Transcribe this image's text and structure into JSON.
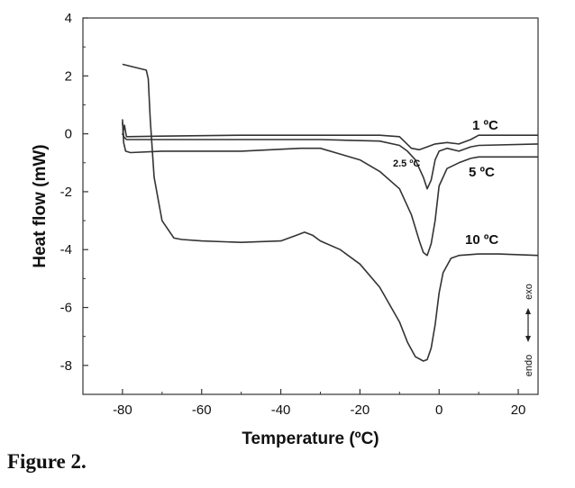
{
  "caption": "Figure 2.",
  "chart_data": {
    "type": "line",
    "xlabel": "Temperature (ºC)",
    "ylabel": "Heat flow (mW)",
    "xlim": [
      -90,
      25
    ],
    "ylim": [
      -9,
      4
    ],
    "xticks": [
      -80,
      -60,
      -40,
      -20,
      0,
      20
    ],
    "yticks": [
      -8,
      -6,
      -4,
      -2,
      0,
      2,
      4
    ],
    "grid": false,
    "annotation": {
      "exo": "exo",
      "endo": "endo"
    },
    "series": [
      {
        "name": "1 ºC",
        "x": [
          -80,
          -79.5,
          -79,
          -70,
          -50,
          -30,
          -15,
          -10,
          -7,
          -5,
          -3,
          -1,
          2,
          5,
          8,
          10,
          25
        ],
        "y": [
          -0.05,
          0.3,
          -0.1,
          -0.08,
          -0.05,
          -0.05,
          -0.05,
          -0.1,
          -0.5,
          -0.55,
          -0.45,
          -0.35,
          -0.3,
          -0.35,
          -0.2,
          -0.05,
          -0.05
        ]
      },
      {
        "name": "2.5 ºC",
        "x": [
          -80,
          -79.7,
          -79,
          -70,
          -50,
          -30,
          -15,
          -10,
          -8,
          -6,
          -4,
          -3,
          -2,
          -1,
          0,
          2,
          5,
          8,
          10,
          25
        ],
        "y": [
          0.4,
          -0.1,
          -0.2,
          -0.2,
          -0.2,
          -0.2,
          -0.25,
          -0.4,
          -0.6,
          -0.9,
          -1.5,
          -1.9,
          -1.6,
          -0.9,
          -0.6,
          -0.5,
          -0.6,
          -0.45,
          -0.4,
          -0.35
        ]
      },
      {
        "name": "5 ºC",
        "x": [
          -80,
          -79.7,
          -79.2,
          -78,
          -70,
          -50,
          -35,
          -30,
          -25,
          -20,
          -15,
          -10,
          -7,
          -5,
          -4,
          -3,
          -2,
          -1,
          0,
          2,
          5,
          8,
          10,
          25
        ],
        "y": [
          0.5,
          -0.3,
          -0.6,
          -0.65,
          -0.6,
          -0.6,
          -0.5,
          -0.5,
          -0.7,
          -0.9,
          -1.3,
          -1.9,
          -2.8,
          -3.7,
          -4.1,
          -4.2,
          -3.8,
          -3.0,
          -1.8,
          -1.2,
          -1.0,
          -0.85,
          -0.8,
          -0.8
        ]
      },
      {
        "name": "10 ºC",
        "x": [
          -80,
          -74,
          -73.5,
          -73,
          -72,
          -70,
          -67,
          -65,
          -60,
          -50,
          -40,
          -36,
          -34,
          -32,
          -30,
          -25,
          -20,
          -15,
          -10,
          -8,
          -6,
          -4,
          -3,
          -2,
          -1,
          0,
          1,
          3,
          5,
          10,
          15,
          25
        ],
        "y": [
          2.4,
          2.2,
          1.9,
          0.5,
          -1.5,
          -3.0,
          -3.6,
          -3.65,
          -3.7,
          -3.75,
          -3.7,
          -3.5,
          -3.4,
          -3.5,
          -3.7,
          -4.0,
          -4.5,
          -5.3,
          -6.5,
          -7.2,
          -7.7,
          -7.85,
          -7.8,
          -7.4,
          -6.6,
          -5.5,
          -4.8,
          -4.3,
          -4.2,
          -4.15,
          -4.15,
          -4.2
        ]
      }
    ]
  }
}
